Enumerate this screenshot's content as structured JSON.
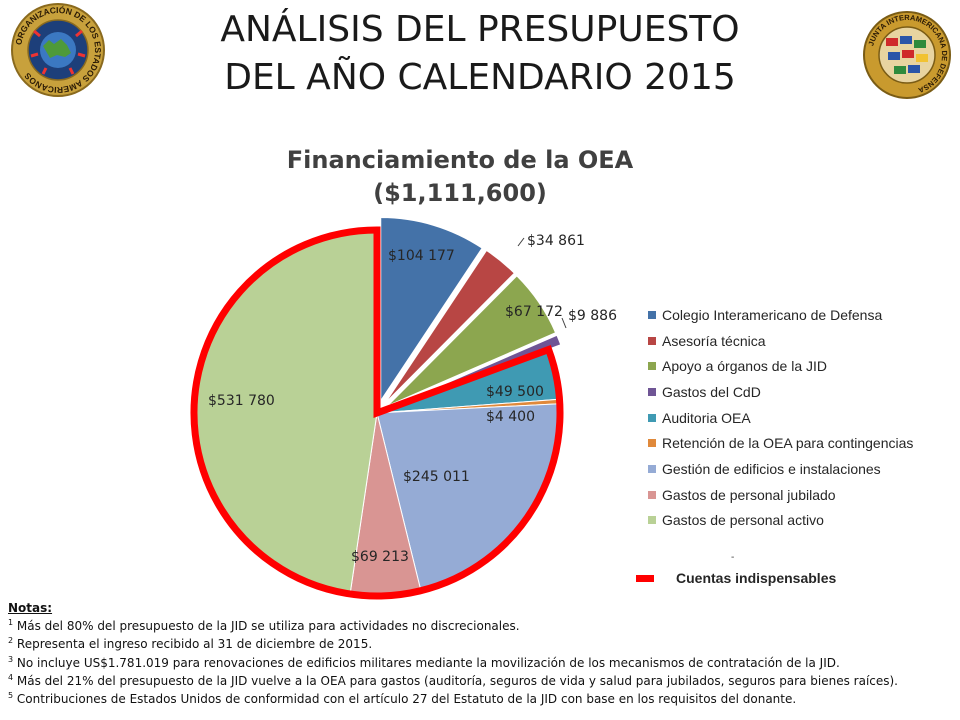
{
  "slide": {
    "title_line1": "ANÁLISIS DEL PRESUPUESTO",
    "title_line2": "DEL AÑO CALENDARIO 2015"
  },
  "seals": {
    "left": {
      "text": "ORGANIZACIÓN DE LOS ESTADOS AMERICANOS",
      "ring_color": "#c8a13c",
      "inner_color": "#1d3f7a"
    },
    "right": {
      "text": "JUNTA INTERAMERICANA DE DEFENSA",
      "ring_color": "#c99a2e",
      "inner_color": "#cf2a2a"
    }
  },
  "chart_data": {
    "type": "pie",
    "title_line1": "Financiamiento de la OEA",
    "title_line2": "($1,111,600)",
    "start_angle_deg": 0,
    "direction": "clockwise",
    "slices": [
      {
        "name": "Colegio Interamericano de Defensa",
        "value": 104177,
        "label": "$104 177",
        "color": "#4472a8",
        "exploded": true
      },
      {
        "name": "Asesoría técnica",
        "value": 34861,
        "label": "$34 861",
        "color": "#b84644",
        "exploded": true
      },
      {
        "name": "Apoyo a órganos de la JID",
        "value": 67172,
        "label": "$67 172",
        "color": "#8ca64f",
        "exploded": true
      },
      {
        "name": "Gastos del CdD",
        "value": 9886,
        "label": "$9 886",
        "color": "#6f5595",
        "exploded": true
      },
      {
        "name": "Auditoria OEA",
        "value": 49500,
        "label": "$49 500",
        "color": "#3f9ab3",
        "exploded": false
      },
      {
        "name": "Retención de la OEA para contingencias",
        "value": 4400,
        "label": "$4 400",
        "color": "#e0893b",
        "exploded": false
      },
      {
        "name": "Gestión de edificios e instalaciones",
        "value": 245011,
        "label": "$245 011",
        "color": "#95abd5",
        "exploded": false
      },
      {
        "name": "Gastos de personal jubilado",
        "value": 69213,
        "label": "$69 213",
        "color": "#d99593",
        "exploded": false
      },
      {
        "name": "Gastos de personal activo",
        "value": 531780,
        "label": "$531 780",
        "color": "#b9d196",
        "exploded": false
      }
    ],
    "highlight_group": {
      "label": "Cuentas indispensables",
      "color": "#ff0000",
      "slices": [
        "Auditoria OEA",
        "Retención de la OEA para contingencias",
        "Gestión de edificios e instalaciones",
        "Gastos de personal jubilado",
        "Gastos de personal activo"
      ]
    },
    "legend_position": "right"
  },
  "legend_extra_mark": "-",
  "notes": {
    "heading": "Notas:",
    "items": [
      {
        "sup": "1",
        "text": " Más del 80% del presupuesto de la JID se utiliza para actividades no discrecionales."
      },
      {
        "sup": "2",
        "text": " Representa el ingreso recibido al 31 de diciembre de 2015."
      },
      {
        "sup": "3",
        "text": " No incluye US$1.781.019 para renovaciones de edificios militares mediante la movilización de los mecanismos de contratación de la JID."
      },
      {
        "sup": "4",
        "text": " Más del 21% del presupuesto de la JID vuelve a la OEA para gastos (auditoría, seguros de vida y salud para jubilados, seguros para bienes raíces)."
      },
      {
        "sup": "5",
        "text": " Contribuciones de Estados Unidos de conformidad con el artículo 27 del Estatuto de la JID con base en los requisitos del donante."
      }
    ]
  }
}
